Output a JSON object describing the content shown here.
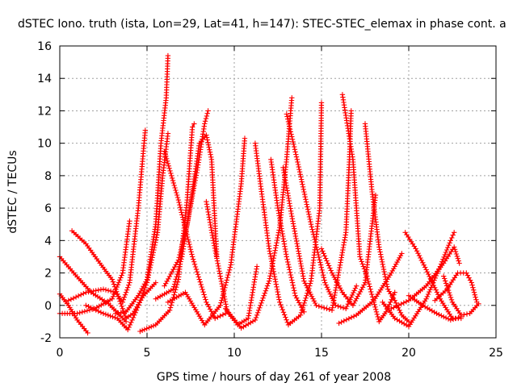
{
  "chart_data": {
    "type": "scatter",
    "title": "dSTEC Iono. truth (ista, Lon=29, Lat=41, h=147): STEC-STEC_elemax in phase cont. a",
    "xlabel": "GPS time / hours of day 261 of year 2008",
    "ylabel": "dSTEC  / TECUs",
    "xlim": [
      0,
      25
    ],
    "ylim": [
      -2,
      16
    ],
    "xticks": [
      0,
      5,
      10,
      15,
      20,
      25
    ],
    "yticks": [
      -2,
      0,
      2,
      4,
      6,
      8,
      10,
      12,
      14,
      16
    ],
    "grid": true,
    "marker": "+",
    "color": "#ff0000",
    "series": [
      {
        "values": [
          [
            0,
            3.0
          ],
          [
            0.8,
            2.0
          ],
          [
            1.8,
            0.8
          ],
          [
            2.8,
            0.1
          ],
          [
            3.8,
            -1.0
          ]
        ]
      },
      {
        "values": [
          [
            0,
            0.7
          ],
          [
            0.5,
            0.0
          ],
          [
            1.0,
            -0.9
          ],
          [
            1.6,
            -1.7
          ]
        ]
      },
      {
        "values": [
          [
            0,
            -0.5
          ],
          [
            1.0,
            -0.5
          ],
          [
            2.0,
            -0.2
          ],
          [
            3.0,
            0.4
          ],
          [
            3.6,
            2.0
          ],
          [
            4.0,
            5.2
          ]
        ]
      },
      {
        "values": [
          [
            0.7,
            4.6
          ],
          [
            1.5,
            3.8
          ],
          [
            2.3,
            2.6
          ],
          [
            3.0,
            1.6
          ],
          [
            3.8,
            -0.8
          ],
          [
            4.2,
            -0.5
          ],
          [
            4.8,
            0.6
          ],
          [
            5.5,
            1.4
          ]
        ]
      },
      {
        "values": [
          [
            0.5,
            0.3
          ],
          [
            1.5,
            0.8
          ],
          [
            2.5,
            1.0
          ],
          [
            3.2,
            0.8
          ],
          [
            3.6,
            0.2
          ],
          [
            4.0,
            1.4
          ],
          [
            4.5,
            6.0
          ],
          [
            4.9,
            10.8
          ]
        ]
      },
      {
        "values": [
          [
            1.5,
            0.0
          ],
          [
            2.5,
            -0.5
          ],
          [
            3.3,
            -0.8
          ],
          [
            3.9,
            -1.5
          ],
          [
            4.4,
            -0.3
          ],
          [
            5.0,
            1.4
          ],
          [
            5.6,
            4.5
          ],
          [
            5.9,
            8.0
          ],
          [
            6.2,
            10.6
          ]
        ]
      },
      {
        "values": [
          [
            3.2,
            -0.5
          ],
          [
            3.8,
            -0.4
          ],
          [
            4.5,
            0.6
          ],
          [
            5.0,
            1.6
          ],
          [
            5.5,
            5.0
          ],
          [
            5.8,
            10.0
          ],
          [
            6.1,
            12.8
          ],
          [
            6.2,
            15.4
          ]
        ]
      },
      {
        "values": [
          [
            4.6,
            -1.6
          ],
          [
            5.5,
            -1.2
          ],
          [
            6.3,
            -0.3
          ],
          [
            6.8,
            1.6
          ],
          [
            7.3,
            6.5
          ],
          [
            7.6,
            11.0
          ],
          [
            7.7,
            11.2
          ]
        ]
      },
      {
        "values": [
          [
            6.0,
            1.2
          ],
          [
            6.8,
            2.8
          ],
          [
            7.3,
            5.0
          ],
          [
            7.9,
            8.5
          ],
          [
            8.3,
            11.2
          ],
          [
            8.5,
            12.0
          ]
        ]
      },
      {
        "values": [
          [
            5.5,
            0.4
          ],
          [
            6.5,
            1.0
          ],
          [
            7.0,
            3.0
          ],
          [
            7.6,
            7.0
          ],
          [
            8.0,
            10.0
          ],
          [
            8.4,
            10.5
          ],
          [
            8.7,
            9.0
          ],
          [
            9.0,
            3.0
          ]
        ]
      },
      {
        "values": [
          [
            6.2,
            0.2
          ],
          [
            7.2,
            0.8
          ],
          [
            8.3,
            -1.2
          ],
          [
            9.2,
            0.0
          ],
          [
            9.8,
            2.5
          ],
          [
            10.4,
            7.5
          ],
          [
            10.6,
            10.3
          ]
        ]
      },
      {
        "values": [
          [
            6.0,
            9.5
          ],
          [
            6.8,
            6.5
          ],
          [
            7.6,
            3.0
          ],
          [
            8.4,
            0.2
          ],
          [
            8.9,
            -0.8
          ],
          [
            9.5,
            -0.5
          ]
        ]
      },
      {
        "values": [
          [
            8.4,
            6.4
          ],
          [
            8.8,
            4.0
          ],
          [
            9.6,
            -0.4
          ],
          [
            10.2,
            -1.2
          ],
          [
            10.8,
            -0.8
          ],
          [
            11.3,
            2.4
          ]
        ]
      },
      {
        "values": [
          [
            9.5,
            -0.2
          ],
          [
            10.4,
            -1.4
          ],
          [
            11.2,
            -0.9
          ],
          [
            12.0,
            1.5
          ],
          [
            12.6,
            4.8
          ],
          [
            13.0,
            9.0
          ],
          [
            13.3,
            12.8
          ]
        ]
      },
      {
        "values": [
          [
            11.2,
            10.0
          ],
          [
            11.5,
            7.5
          ],
          [
            12.0,
            3.5
          ],
          [
            12.6,
            0.2
          ],
          [
            13.1,
            -1.2
          ],
          [
            13.8,
            -0.6
          ],
          [
            14.4,
            1.5
          ],
          [
            14.9,
            6.0
          ],
          [
            15.0,
            12.5
          ]
        ]
      },
      {
        "values": [
          [
            12.1,
            9.0
          ],
          [
            12.5,
            6.0
          ],
          [
            13.0,
            3.0
          ],
          [
            13.5,
            0.6
          ],
          [
            14.0,
            -0.4
          ]
        ]
      },
      {
        "values": [
          [
            12.8,
            8.5
          ],
          [
            13.3,
            5.5
          ],
          [
            14.0,
            1.5
          ],
          [
            14.7,
            0.0
          ],
          [
            15.6,
            -0.3
          ],
          [
            16.4,
            4.5
          ],
          [
            16.6,
            9.0
          ],
          [
            16.7,
            12.0
          ]
        ]
      },
      {
        "values": [
          [
            13.0,
            11.8
          ],
          [
            13.6,
            9.0
          ],
          [
            14.4,
            5.0
          ],
          [
            15.2,
            1.4
          ],
          [
            15.8,
            0.0
          ],
          [
            16.4,
            -0.2
          ],
          [
            17.0,
            1.2
          ]
        ]
      },
      {
        "values": [
          [
            15.0,
            3.5
          ],
          [
            15.6,
            2.0
          ],
          [
            16.2,
            0.8
          ],
          [
            16.8,
            0.0
          ],
          [
            17.5,
            1.4
          ],
          [
            18.1,
            6.8
          ]
        ]
      },
      {
        "values": [
          [
            16.2,
            13.0
          ],
          [
            16.8,
            9.0
          ],
          [
            17.2,
            3.0
          ],
          [
            17.6,
            1.8
          ],
          [
            18.0,
            0.2
          ],
          [
            18.3,
            -1.0
          ],
          [
            18.7,
            -0.4
          ],
          [
            19.2,
            0.8
          ]
        ]
      },
      {
        "values": [
          [
            17.5,
            11.2
          ],
          [
            17.9,
            7.0
          ],
          [
            18.3,
            3.6
          ],
          [
            18.8,
            1.0
          ],
          [
            19.2,
            0.3
          ],
          [
            19.6,
            -0.6
          ],
          [
            20.0,
            -1.0
          ]
        ]
      },
      {
        "values": [
          [
            16.0,
            -1.1
          ],
          [
            17.0,
            -0.6
          ],
          [
            18.0,
            0.3
          ],
          [
            19.0,
            2.0
          ],
          [
            19.6,
            3.2
          ]
        ]
      },
      {
        "values": [
          [
            18.5,
            0.2
          ],
          [
            19.2,
            -0.8
          ],
          [
            20.0,
            -1.3
          ],
          [
            21.0,
            0.4
          ],
          [
            21.8,
            2.4
          ],
          [
            22.4,
            4.0
          ],
          [
            22.6,
            4.5
          ]
        ]
      },
      {
        "values": [
          [
            19.8,
            4.5
          ],
          [
            20.4,
            3.5
          ],
          [
            21.0,
            2.2
          ],
          [
            21.8,
            0.4
          ],
          [
            22.5,
            -0.8
          ],
          [
            23.0,
            -0.8
          ]
        ]
      },
      {
        "values": [
          [
            19.0,
            -0.2
          ],
          [
            20.0,
            0.3
          ],
          [
            21.0,
            1.2
          ],
          [
            22.0,
            2.6
          ],
          [
            22.6,
            3.6
          ],
          [
            22.9,
            2.6
          ]
        ]
      },
      {
        "values": [
          [
            21.5,
            0.3
          ],
          [
            22.2,
            1.0
          ],
          [
            22.8,
            2.0
          ],
          [
            23.3,
            2.0
          ],
          [
            23.6,
            1.4
          ],
          [
            23.9,
            0.2
          ]
        ]
      },
      {
        "values": [
          [
            22.0,
            1.8
          ],
          [
            22.5,
            0.2
          ],
          [
            23.0,
            -0.6
          ],
          [
            23.5,
            -0.5
          ],
          [
            24.0,
            0.1
          ]
        ]
      },
      {
        "values": [
          [
            20.0,
            0.6
          ],
          [
            20.8,
            0.0
          ],
          [
            21.6,
            -0.5
          ],
          [
            22.4,
            -0.9
          ],
          [
            23.0,
            -0.7
          ]
        ]
      }
    ]
  }
}
